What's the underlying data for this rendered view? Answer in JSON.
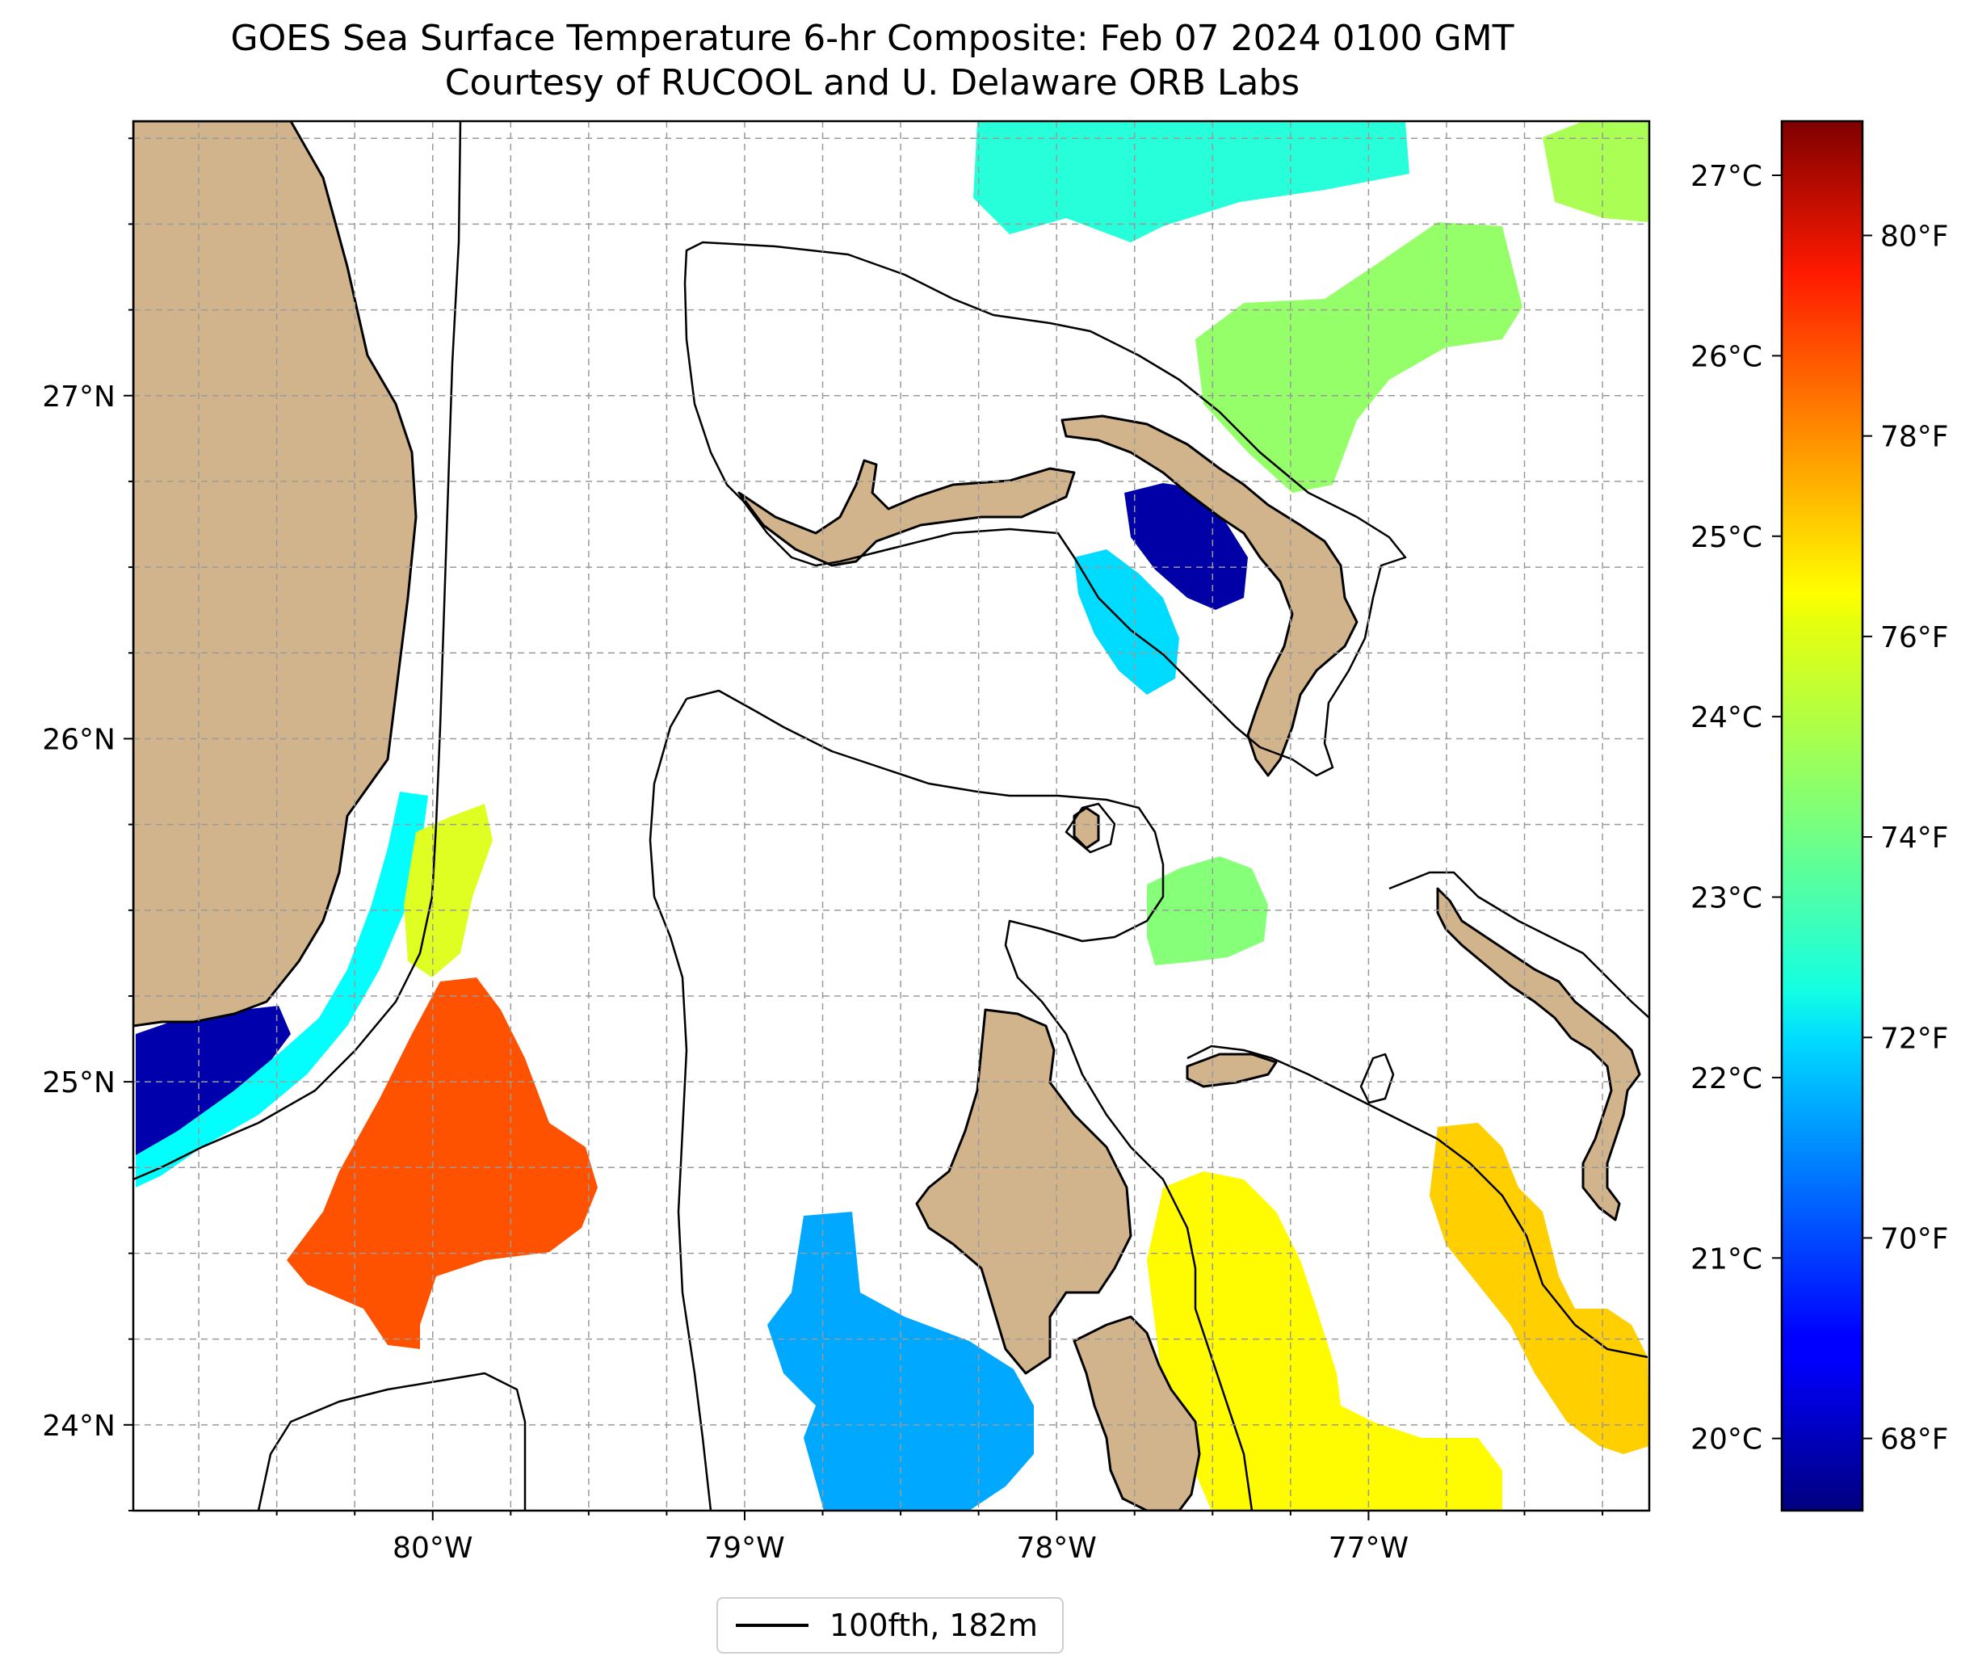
{
  "title": {
    "line1": "GOES Sea Surface Temperature 6-hr Composite: Feb 07 2024 0100 GMT",
    "line2": "Courtesy of RUCOOL and U. Delaware ORB Labs"
  },
  "map": {
    "lon_range": [
      -80.96,
      -76.1
    ],
    "lat_range": [
      23.75,
      27.8
    ],
    "lon_ticks": [
      {
        "value": -80,
        "label": "80°W"
      },
      {
        "value": -79,
        "label": "79°W"
      },
      {
        "value": -78,
        "label": "78°W"
      },
      {
        "value": -77,
        "label": "77°W"
      }
    ],
    "lat_ticks": [
      {
        "value": 24,
        "label": "24°N"
      },
      {
        "value": 25,
        "label": "25°N"
      },
      {
        "value": 26,
        "label": "26°N"
      },
      {
        "value": 27,
        "label": "27°N"
      }
    ],
    "gridlines": "dashed",
    "land_color": "#d2b48c",
    "coast_color": "#000000"
  },
  "colorbar": {
    "colormap": "jet",
    "range_c": [
      19.6,
      27.3
    ],
    "celsius_ticks": [
      {
        "value": 20,
        "label": "20°C"
      },
      {
        "value": 21,
        "label": "21°C"
      },
      {
        "value": 22,
        "label": "22°C"
      },
      {
        "value": 23,
        "label": "23°C"
      },
      {
        "value": 24,
        "label": "24°C"
      },
      {
        "value": 25,
        "label": "25°C"
      },
      {
        "value": 26,
        "label": "26°C"
      },
      {
        "value": 27,
        "label": "27°C"
      }
    ],
    "fahrenheit_ticks": [
      {
        "value": 68,
        "label": "68°F"
      },
      {
        "value": 70,
        "label": "70°F"
      },
      {
        "value": 72,
        "label": "72°F"
      },
      {
        "value": 74,
        "label": "74°F"
      },
      {
        "value": 76,
        "label": "76°F"
      },
      {
        "value": 78,
        "label": "78°F"
      },
      {
        "value": 80,
        "label": "80°F"
      }
    ]
  },
  "sst_patches": [
    {
      "name": "northeast-patch",
      "temp_f": 73.0
    },
    {
      "name": "grand-bahama-north-patch",
      "temp_f": 74.5
    },
    {
      "name": "northeast-edge-patch",
      "temp_f": 74.8
    },
    {
      "name": "florida-inland-lake-patch",
      "temp_f": 67.6
    },
    {
      "name": "little-bahama-bank-cold-patch",
      "temp_f": 67.8
    },
    {
      "name": "northwest-providence-channel-patch",
      "temp_f": 72.0
    },
    {
      "name": "florida-bay-cold-patch",
      "temp_f": 67.9
    },
    {
      "name": "florida-keys-band-patch",
      "temp_f": 72.5
    },
    {
      "name": "upper-keys-yellow-patch",
      "temp_f": 75.5
    },
    {
      "name": "straits-warm-patch",
      "temp_f": 78.3
    },
    {
      "name": "south-andros-cool-patch",
      "temp_f": 71.3
    },
    {
      "name": "exuma-sound-patch",
      "temp_f": 76.0
    },
    {
      "name": "tongue-of-ocean-patch",
      "temp_f": 74.3
    },
    {
      "name": "southeast-patch",
      "temp_f": 76.6
    }
  ],
  "legend": {
    "label": "100fth, 182m"
  }
}
